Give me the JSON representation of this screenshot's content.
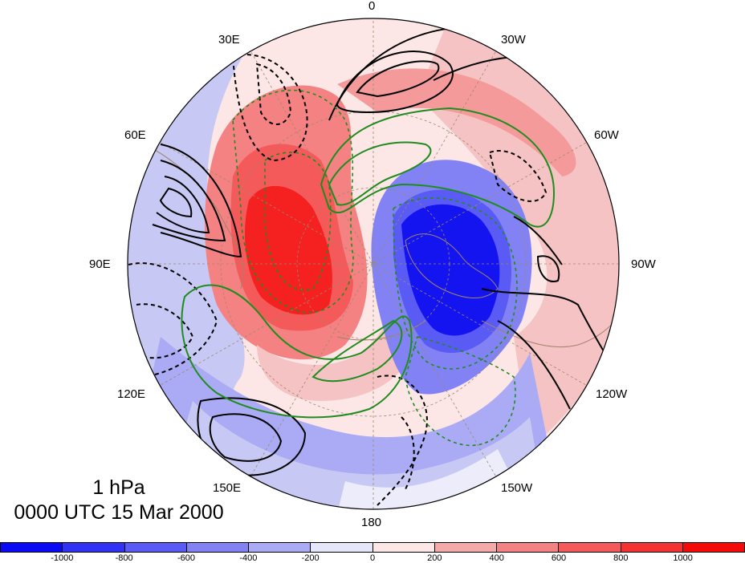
{
  "title": {
    "level": "1 hPa",
    "time": "0000 UTC 15 Mar 2000"
  },
  "longitude_labels": {
    "lon_0": "0",
    "lon_30w": "30W",
    "lon_60w": "60W",
    "lon_90w": "90W",
    "lon_120w": "120W",
    "lon_150w": "150W",
    "lon_180": "180",
    "lon_150e": "150E",
    "lon_120e": "120E",
    "lon_90e": "90E",
    "lon_60e": "60E",
    "lon_30e": "30E"
  },
  "colorbar": {
    "ticks": [
      "-1000",
      "-800",
      "-600",
      "-400",
      "-200",
      "0",
      "200",
      "400",
      "600",
      "800",
      "1000"
    ],
    "colors": [
      "#0a0af5",
      "#3232f5",
      "#5a5af5",
      "#8282f5",
      "#aaaaf5",
      "#e6e6fa",
      "#fde6e6",
      "#f5aaaa",
      "#f58282",
      "#f55a5a",
      "#f53232",
      "#f50a0a"
    ]
  },
  "map": {
    "projection": "north-polar-stereographic",
    "shading_field": "anomaly",
    "contour_colors": {
      "black": "#000000",
      "green": "#1e8c1e"
    }
  }
}
